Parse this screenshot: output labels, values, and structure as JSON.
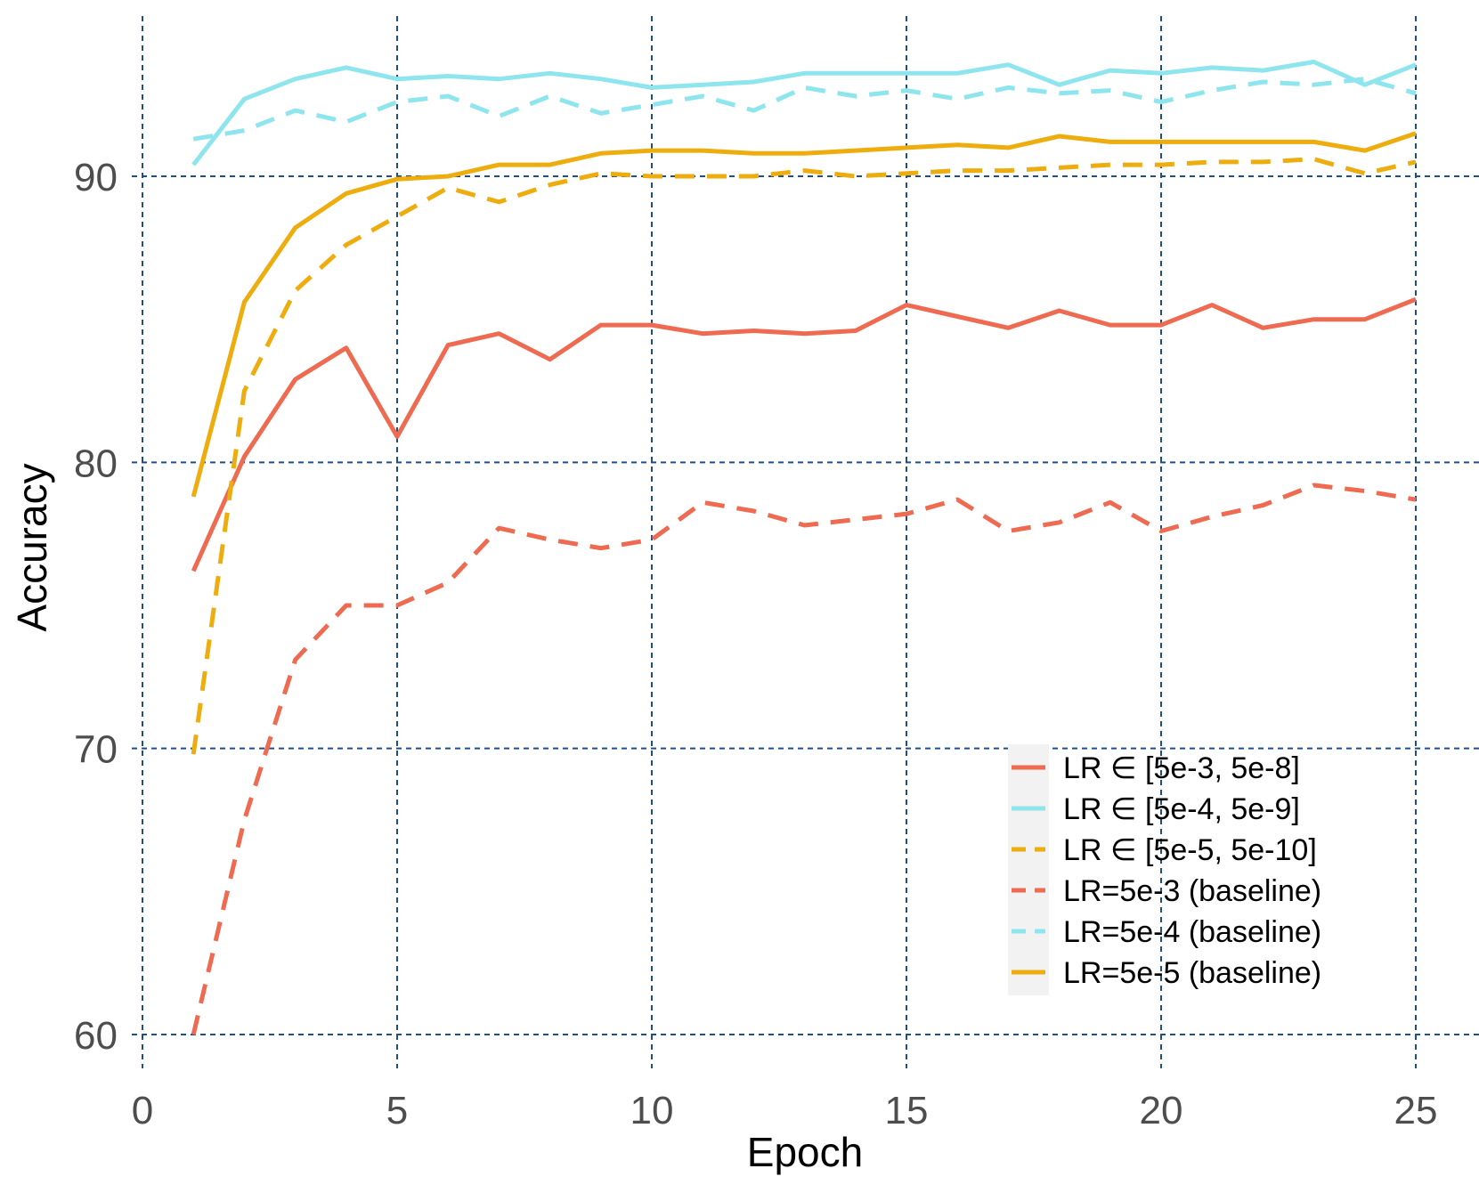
{
  "chart_data": {
    "type": "line",
    "title": "",
    "xlabel": "Epoch",
    "ylabel": "Accuracy",
    "xlim": [
      0,
      26.2
    ],
    "ylim": [
      58.8,
      94.8
    ],
    "xticks": [
      0,
      5,
      10,
      15,
      20,
      25
    ],
    "yticks": [
      60,
      70,
      80,
      90
    ],
    "grid": true,
    "legend_position": "bottom-right",
    "x": [
      1,
      2,
      3,
      4,
      5,
      6,
      7,
      8,
      9,
      10,
      11,
      12,
      13,
      14,
      15,
      16,
      17,
      18,
      19,
      20,
      21,
      22,
      23,
      24,
      25
    ],
    "series": [
      {
        "name": "LR ∈ [5e-3, 5e-8]",
        "color": "#EE6A50",
        "dash": "solid",
        "values": [
          76.2,
          80.2,
          82.9,
          84.0,
          80.9,
          84.1,
          84.5,
          83.6,
          84.8,
          84.8,
          84.5,
          84.6,
          84.5,
          84.6,
          85.5,
          85.1,
          84.7,
          85.3,
          84.8,
          84.8,
          85.5,
          84.7,
          85.0,
          85.0,
          85.7
        ]
      },
      {
        "name": "LR ∈ [5e-4, 5e-9]",
        "color": "#8EE5EE",
        "dash": "solid",
        "values": [
          90.4,
          92.7,
          93.4,
          93.8,
          93.4,
          93.5,
          93.4,
          93.6,
          93.4,
          93.1,
          93.2,
          93.3,
          93.6,
          93.6,
          93.6,
          93.6,
          93.9,
          93.2,
          93.7,
          93.6,
          93.8,
          93.7,
          94.0,
          93.2,
          93.9
        ]
      },
      {
        "name": "LR ∈ [5e-5, 5e-10]",
        "color": "#EEAD0E",
        "dash": "dashed",
        "values": [
          69.8,
          82.5,
          86.0,
          87.6,
          88.6,
          89.6,
          89.1,
          89.7,
          90.1,
          90.0,
          90.0,
          90.0,
          90.2,
          90.0,
          90.1,
          90.2,
          90.2,
          90.3,
          90.4,
          90.4,
          90.5,
          90.5,
          90.6,
          90.1,
          90.5
        ]
      },
      {
        "name": "LR=5e-3 (baseline)",
        "color": "#EE6A50",
        "dash": "dashed",
        "values": [
          60.0,
          67.5,
          73.1,
          75.0,
          75.0,
          75.8,
          77.7,
          77.3,
          77.0,
          77.3,
          78.6,
          78.3,
          77.8,
          78.0,
          78.2,
          78.7,
          77.6,
          77.9,
          78.6,
          77.6,
          78.1,
          78.5,
          79.2,
          79.0,
          78.7
        ]
      },
      {
        "name": "LR=5e-4 (baseline)",
        "color": "#8EE5EE",
        "dash": "dashed",
        "values": [
          91.3,
          91.6,
          92.3,
          91.9,
          92.6,
          92.8,
          92.1,
          92.8,
          92.2,
          92.5,
          92.8,
          92.3,
          93.1,
          92.8,
          93.0,
          92.7,
          93.1,
          92.9,
          93.0,
          92.6,
          93.0,
          93.3,
          93.2,
          93.4,
          92.9
        ]
      },
      {
        "name": "LR=5e-5 (baseline)",
        "color": "#EEAD0E",
        "dash": "solid",
        "values": [
          78.8,
          85.6,
          88.2,
          89.4,
          89.9,
          90.0,
          90.4,
          90.4,
          90.8,
          90.9,
          90.9,
          90.8,
          90.8,
          90.9,
          91.0,
          91.1,
          91.0,
          91.4,
          91.2,
          91.2,
          91.2,
          91.2,
          91.2,
          90.9,
          91.5
        ]
      }
    ],
    "legend_order": [
      0,
      1,
      2,
      3,
      4,
      5
    ]
  }
}
